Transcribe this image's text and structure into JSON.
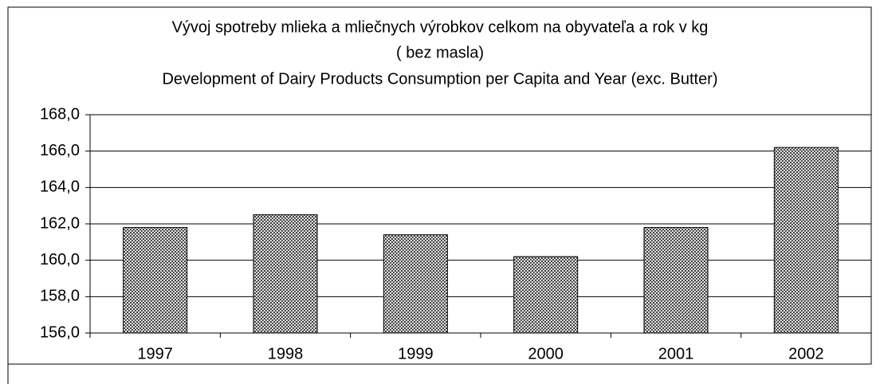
{
  "chart_data": {
    "type": "bar",
    "title": [
      "Vývoj spotreby mlieka a mliečnych výrobkov celkom na obyvateľa a rok v kg",
      "( bez masla)",
      "Development of Dairy Products Consumption per Capita and Year (exc. Butter)"
    ],
    "categories": [
      "1997",
      "1998",
      "1999",
      "2000",
      "2001",
      "2002"
    ],
    "values": [
      161.8,
      162.5,
      161.4,
      160.2,
      161.8,
      166.2
    ],
    "color": "#000000",
    "ylim": [
      156,
      168
    ],
    "yticks": [
      {
        "value": 156,
        "label": "156,0"
      },
      {
        "value": 158,
        "label": "158,0"
      },
      {
        "value": 160,
        "label": "160,0"
      },
      {
        "value": 162,
        "label": "162,0"
      },
      {
        "value": 164,
        "label": "164,0"
      },
      {
        "value": 166,
        "label": "166,0"
      },
      {
        "value": 168,
        "label": "168,0"
      }
    ],
    "grid": true
  }
}
